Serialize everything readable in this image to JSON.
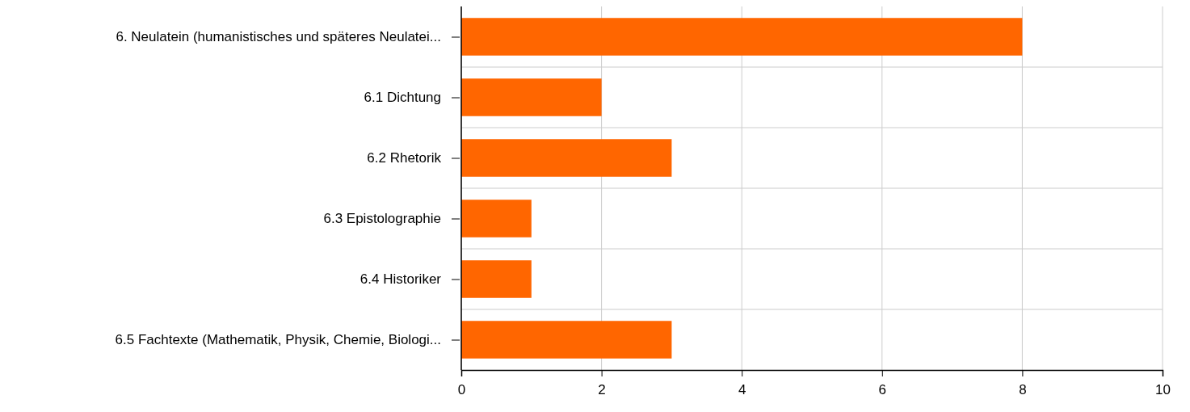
{
  "chart_data": {
    "type": "bar",
    "orientation": "horizontal",
    "categories": [
      "6. Neulatein (humanistisches und späteres Neulatei...",
      "6.1 Dichtung",
      "6.2 Rhetorik",
      "6.3 Epistolographie",
      "6.4 Historiker",
      "6.5 Fachtexte (Mathematik, Physik, Chemie, Biologi..."
    ],
    "values": [
      8,
      2,
      3,
      1,
      1,
      3
    ],
    "color": "#ff6600",
    "xlim": [
      0,
      10
    ],
    "xticks": [
      0,
      2,
      4,
      6,
      8,
      10
    ],
    "grid": true
  }
}
